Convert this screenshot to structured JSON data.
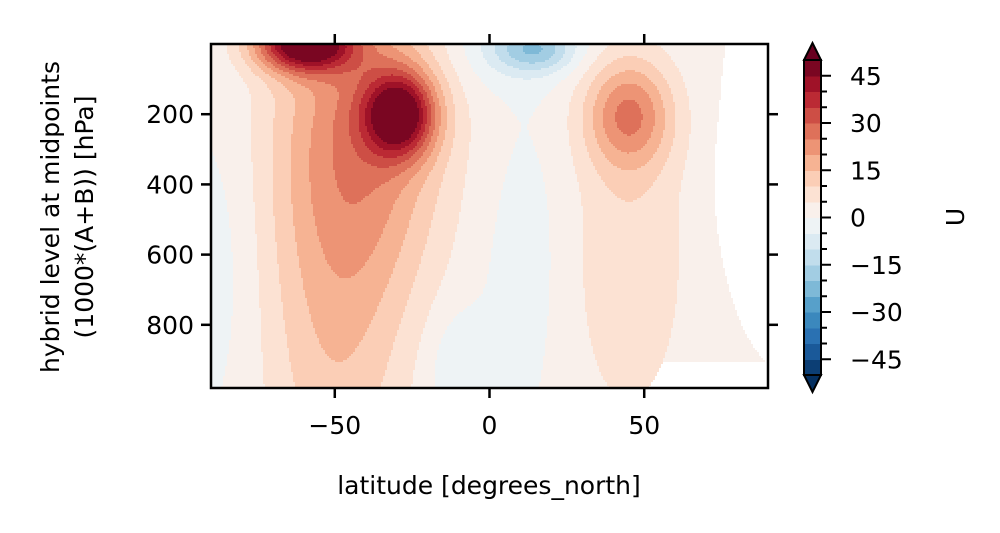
{
  "chart_data": {
    "type": "heatmap",
    "subtype": "filled-contour",
    "title": "",
    "xlabel": "latitude [degrees_north]",
    "ylabel": "hybrid level at midpoints (1000*(A+B)) [hPa]",
    "ylabel_lines": [
      "hybrid level at midpoints",
      "(1000*(A+B)) [hPa]"
    ],
    "xlim": [
      -90,
      90
    ],
    "ylim": [
      980,
      0
    ],
    "y_inverted": true,
    "x_ticks": [
      -50,
      0,
      50
    ],
    "x_tick_labels": [
      "−50",
      "0",
      "50"
    ],
    "y_ticks": [
      200,
      400,
      600,
      800
    ],
    "y_tick_labels": [
      "200",
      "400",
      "600",
      "800"
    ],
    "colorbar": {
      "label": "U",
      "cmap": "RdBu_r",
      "extend": "both",
      "levels": [
        -50,
        -45,
        -40,
        -35,
        -30,
        -25,
        -20,
        -15,
        -10,
        -5,
        0,
        5,
        10,
        15,
        20,
        25,
        30,
        35,
        40,
        45,
        50
      ],
      "tick_values": [
        -45,
        -30,
        -15,
        0,
        15,
        30,
        45
      ],
      "tick_labels": [
        "−45",
        "−30",
        "−15",
        "0",
        "15",
        "30",
        "45"
      ]
    },
    "grid": false,
    "features": [
      {
        "description": "southern subtropical jet core",
        "lat": -29,
        "pressure_hPa": 200,
        "U": 40
      },
      {
        "description": "southern polar night jet, model top",
        "lat": -60,
        "pressure_hPa": 10,
        "U": 45
      },
      {
        "description": "northern subtropical jet core",
        "lat": 45,
        "pressure_hPa": 200,
        "U": 22
      },
      {
        "description": "tropical upper easterlies",
        "lat": 15,
        "pressure_hPa": 15,
        "U": -17
      },
      {
        "description": "tropical lower easterlies",
        "lat": -10,
        "pressure_hPa": 900,
        "U": -6
      },
      {
        "description": "southern surface westerlies",
        "lat": -50,
        "pressure_hPa": 900,
        "U": 12
      },
      {
        "description": "northern surface westerlies",
        "lat": 45,
        "pressure_hPa": 850,
        "U": 8
      }
    ]
  }
}
